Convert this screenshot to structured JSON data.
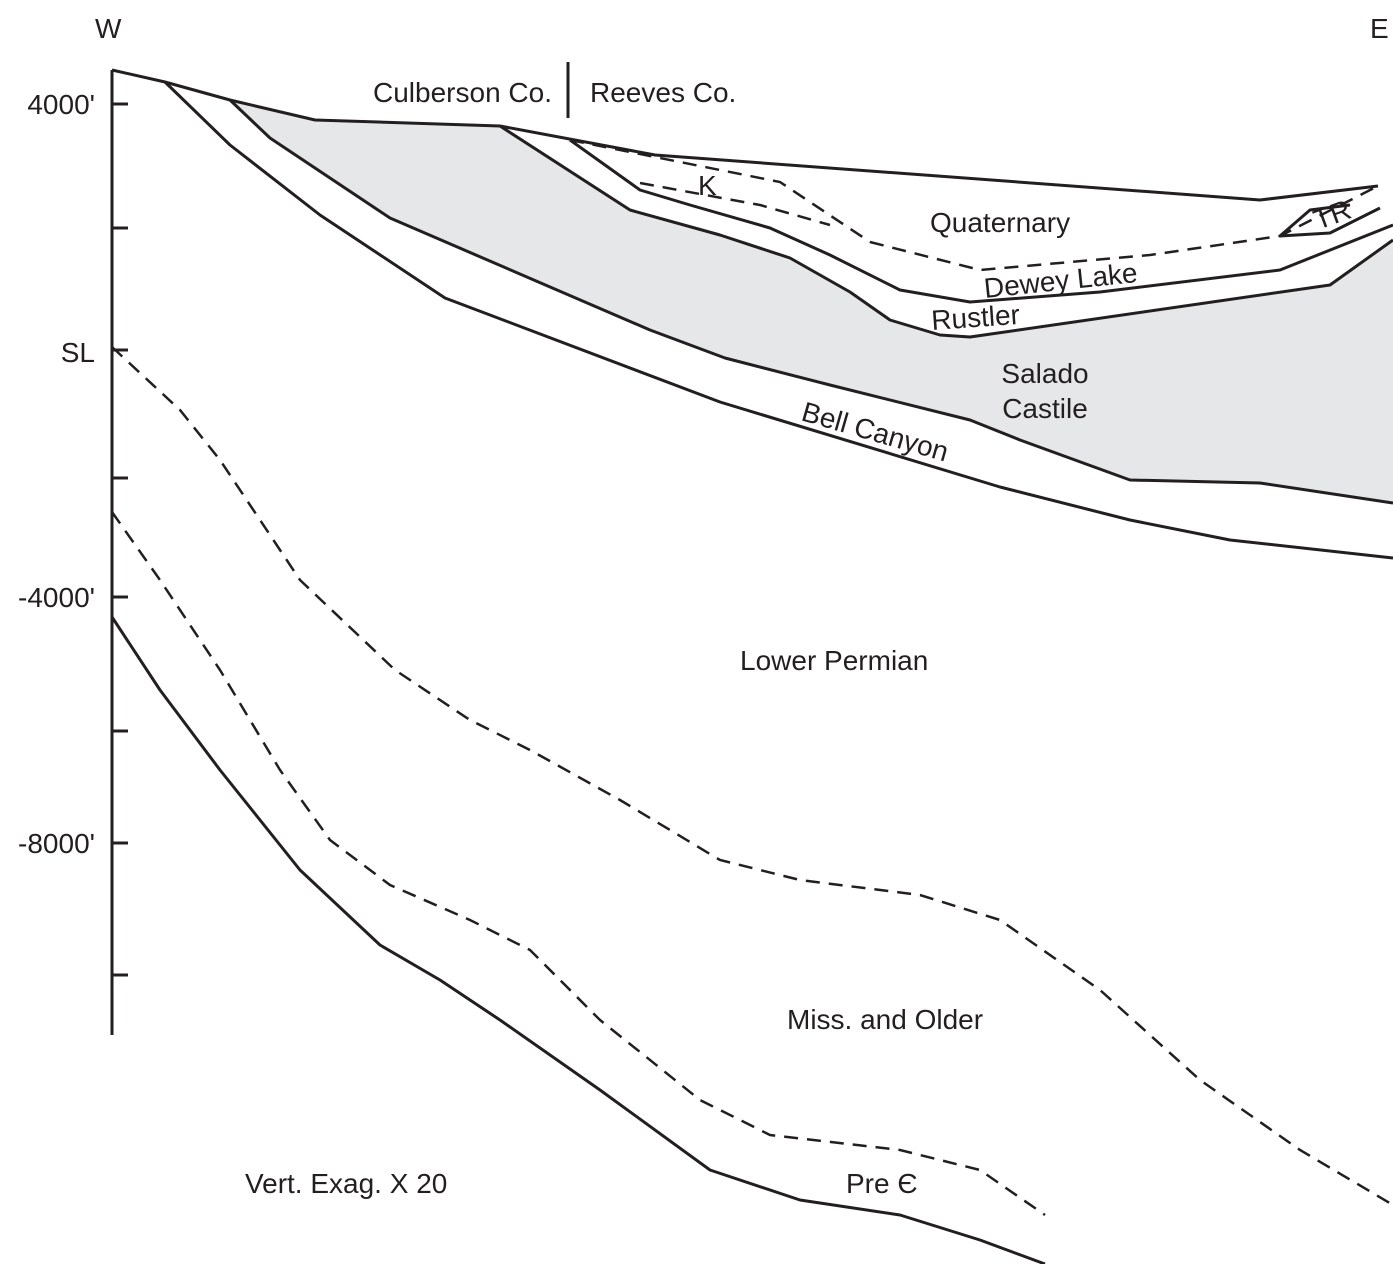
{
  "directions": {
    "west": "W",
    "east": "E"
  },
  "depth_axis": {
    "labels": [
      "4000'",
      "SL",
      "-4000'",
      "-8000'"
    ]
  },
  "counties": {
    "left": "Culberson Co.",
    "right": "Reeves Co."
  },
  "formations": {
    "k": "K",
    "quaternary": "Quaternary",
    "triassic": "TR",
    "dewey_lake": "Dewey Lake",
    "rustler": "Rustler",
    "salado": "Salado",
    "castile": "Castile",
    "bell_canyon": "Bell Canyon",
    "lower_permian": "Lower Permian",
    "miss_older": "Miss. and Older",
    "precambrian": "Pre Є"
  },
  "note": "Vert. Exag. X 20"
}
